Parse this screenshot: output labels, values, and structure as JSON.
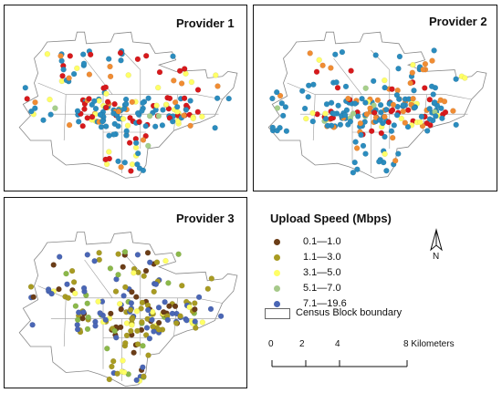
{
  "panels": [
    {
      "id": "p1",
      "title": "Provider 1",
      "palette": [
        "#d7191c",
        "#f08c33",
        "#ffff66",
        "#a6cf8a",
        "#2b8cbe"
      ],
      "weights": [
        0.28,
        0.12,
        0.18,
        0.05,
        0.37
      ]
    },
    {
      "id": "p2",
      "title": "Provider 2",
      "palette": [
        "#d7191c",
        "#f08c33",
        "#ffff66",
        "#a6cf8a",
        "#2b8cbe"
      ],
      "weights": [
        0.13,
        0.22,
        0.1,
        0.03,
        0.52
      ]
    },
    {
      "id": "p3",
      "title": "Provider 3",
      "palette": [
        "#6b3d17",
        "#a89b22",
        "#ffff66",
        "#8bb84a",
        "#4a66b5"
      ],
      "weights": [
        0.18,
        0.3,
        0.15,
        0.12,
        0.25
      ]
    }
  ],
  "legend": {
    "title": "Upload Speed (Mbps)",
    "items": [
      {
        "label": "0.1—1.0",
        "color": "#6b3d17"
      },
      {
        "label": "1.1—3.0",
        "color": "#a89b22"
      },
      {
        "label": "3.1—5.0",
        "color": "#ffff66"
      },
      {
        "label": "5.1—7.0",
        "color": "#a6c98a"
      },
      {
        "label": "7.1—19.6",
        "color": "#4a66b5"
      }
    ],
    "boundary_label": "Census Block boundary"
  },
  "north_arrow": {
    "label": "N"
  },
  "scale_bar": {
    "ticks": [
      "0",
      "2",
      "4",
      "8 Kilometers"
    ],
    "values_km": [
      0,
      2,
      4,
      8
    ]
  }
}
